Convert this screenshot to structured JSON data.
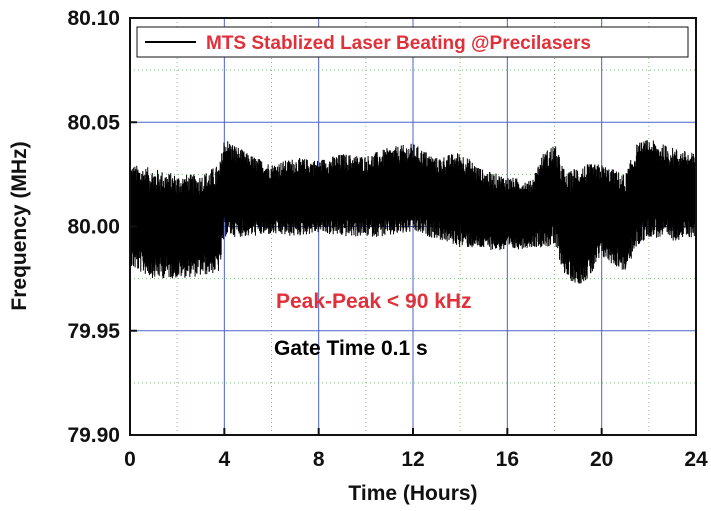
{
  "chart_data": {
    "type": "line",
    "xlabel": "Time (Hours)",
    "ylabel": "Frequency (MHz)",
    "xlim": [
      0,
      24
    ],
    "ylim": [
      79.9,
      80.1
    ],
    "x_ticks": [
      0,
      4,
      8,
      12,
      16,
      20,
      24
    ],
    "x_tick_labels": [
      "0",
      "4",
      "8",
      "12",
      "16",
      "20",
      "24"
    ],
    "y_ticks": [
      79.9,
      79.95,
      80.0,
      80.05,
      80.1
    ],
    "y_tick_labels": [
      "79.90",
      "79.95",
      "80.00",
      "80.05",
      "80.10"
    ],
    "grid": true,
    "legend_position": "top-right",
    "series": [
      {
        "name": "MTS Stablized Laser Beating @Precilasers",
        "color": "#000000",
        "envelope": {
          "x": [
            0,
            1,
            2,
            3,
            3.8,
            4,
            5,
            6,
            7,
            8,
            9,
            10,
            11,
            12,
            13,
            14,
            15,
            16,
            17,
            17.5,
            18,
            18.5,
            19,
            19.5,
            20,
            21,
            21.5,
            22,
            23,
            24
          ],
          "upper": [
            80.03,
            80.028,
            80.025,
            80.025,
            80.03,
            80.043,
            80.035,
            80.03,
            80.033,
            80.032,
            80.035,
            80.034,
            80.038,
            80.04,
            80.033,
            80.036,
            80.027,
            80.024,
            80.022,
            80.035,
            80.04,
            80.025,
            80.03,
            80.03,
            80.03,
            80.025,
            80.04,
            80.042,
            80.038,
            80.035
          ],
          "lower": [
            79.98,
            79.975,
            79.975,
            79.976,
            79.978,
            79.995,
            79.995,
            79.996,
            79.995,
            79.997,
            79.995,
            79.995,
            79.995,
            79.997,
            79.994,
            79.99,
            79.989,
            79.988,
            79.99,
            79.99,
            79.99,
            79.975,
            79.972,
            79.975,
            79.985,
            79.978,
            79.99,
            79.995,
            79.993,
            79.995
          ]
        }
      }
    ],
    "annotations": [
      {
        "text": "Peak-Peak < 90 kHz",
        "color": "#e0303a"
      },
      {
        "text": "Gate Time 0.1 s",
        "color": "#000000"
      }
    ]
  }
}
